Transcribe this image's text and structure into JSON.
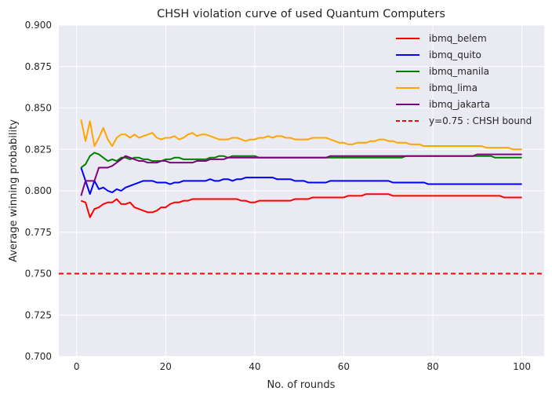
{
  "chart_data": {
    "type": "line",
    "title": "CHSH violation curve of used Quantum Computers",
    "xlabel": "No. of rounds",
    "ylabel": "Average winning probability",
    "xlim": [
      -4,
      105
    ],
    "ylim": [
      0.7,
      0.9
    ],
    "x_ticks": [
      0,
      20,
      40,
      60,
      80,
      100
    ],
    "x_tick_labels": [
      "0",
      "20",
      "40",
      "60",
      "80",
      "100"
    ],
    "y_ticks": [
      0.7,
      0.725,
      0.75,
      0.775,
      0.8,
      0.825,
      0.85,
      0.875,
      0.9
    ],
    "y_tick_labels": [
      "0.700",
      "0.725",
      "0.750",
      "0.775",
      "0.800",
      "0.825",
      "0.850",
      "0.875",
      "0.900"
    ],
    "grid": true,
    "legend_position": "top-right",
    "x_start": 1,
    "x_step": 1,
    "series": [
      {
        "name": "ibmq_belem",
        "color": "#ff0000",
        "values": [
          0.794,
          0.793,
          0.784,
          0.789,
          0.79,
          0.792,
          0.793,
          0.793,
          0.795,
          0.792,
          0.792,
          0.793,
          0.79,
          0.789,
          0.788,
          0.787,
          0.787,
          0.788,
          0.79,
          0.79,
          0.792,
          0.793,
          0.793,
          0.794,
          0.794,
          0.795,
          0.795,
          0.795,
          0.795,
          0.795,
          0.795,
          0.795,
          0.795,
          0.795,
          0.795,
          0.795,
          0.794,
          0.794,
          0.793,
          0.793,
          0.794,
          0.794,
          0.794,
          0.794,
          0.794,
          0.794,
          0.794,
          0.794,
          0.795,
          0.795,
          0.795,
          0.795,
          0.796,
          0.796,
          0.796,
          0.796,
          0.796,
          0.796,
          0.796,
          0.796,
          0.797,
          0.797,
          0.797,
          0.797,
          0.798,
          0.798,
          0.798,
          0.798,
          0.798,
          0.798,
          0.797,
          0.797,
          0.797,
          0.797,
          0.797,
          0.797,
          0.797,
          0.797,
          0.797,
          0.797,
          0.797,
          0.797,
          0.797,
          0.797,
          0.797,
          0.797,
          0.797,
          0.797,
          0.797,
          0.797,
          0.797,
          0.797,
          0.797,
          0.797,
          0.797,
          0.796,
          0.796,
          0.796,
          0.796,
          0.796
        ]
      },
      {
        "name": "ibmq_quito",
        "color": "#0000ff",
        "values": [
          0.814,
          0.806,
          0.798,
          0.806,
          0.801,
          0.802,
          0.8,
          0.799,
          0.801,
          0.8,
          0.802,
          0.803,
          0.804,
          0.805,
          0.806,
          0.806,
          0.806,
          0.805,
          0.805,
          0.805,
          0.804,
          0.805,
          0.805,
          0.806,
          0.806,
          0.806,
          0.806,
          0.806,
          0.806,
          0.807,
          0.806,
          0.806,
          0.807,
          0.807,
          0.806,
          0.807,
          0.807,
          0.808,
          0.808,
          0.808,
          0.808,
          0.808,
          0.808,
          0.808,
          0.807,
          0.807,
          0.807,
          0.807,
          0.806,
          0.806,
          0.806,
          0.805,
          0.805,
          0.805,
          0.805,
          0.805,
          0.806,
          0.806,
          0.806,
          0.806,
          0.806,
          0.806,
          0.806,
          0.806,
          0.806,
          0.806,
          0.806,
          0.806,
          0.806,
          0.806,
          0.805,
          0.805,
          0.805,
          0.805,
          0.805,
          0.805,
          0.805,
          0.805,
          0.804,
          0.804,
          0.804,
          0.804,
          0.804,
          0.804,
          0.804,
          0.804,
          0.804,
          0.804,
          0.804,
          0.804,
          0.804,
          0.804,
          0.804,
          0.804,
          0.804,
          0.804,
          0.804,
          0.804,
          0.804,
          0.804
        ]
      },
      {
        "name": "ibmq_manila",
        "color": "#008000",
        "values": [
          0.814,
          0.816,
          0.821,
          0.823,
          0.822,
          0.82,
          0.818,
          0.819,
          0.818,
          0.82,
          0.82,
          0.819,
          0.82,
          0.82,
          0.819,
          0.819,
          0.818,
          0.818,
          0.818,
          0.819,
          0.819,
          0.82,
          0.82,
          0.819,
          0.819,
          0.819,
          0.819,
          0.819,
          0.819,
          0.82,
          0.82,
          0.821,
          0.821,
          0.82,
          0.821,
          0.821,
          0.821,
          0.821,
          0.821,
          0.821,
          0.82,
          0.82,
          0.82,
          0.82,
          0.82,
          0.82,
          0.82,
          0.82,
          0.82,
          0.82,
          0.82,
          0.82,
          0.82,
          0.82,
          0.82,
          0.82,
          0.82,
          0.82,
          0.82,
          0.82,
          0.82,
          0.82,
          0.82,
          0.82,
          0.82,
          0.82,
          0.82,
          0.82,
          0.82,
          0.82,
          0.82,
          0.82,
          0.82,
          0.821,
          0.821,
          0.821,
          0.821,
          0.821,
          0.821,
          0.821,
          0.821,
          0.821,
          0.821,
          0.821,
          0.821,
          0.821,
          0.821,
          0.821,
          0.821,
          0.821,
          0.821,
          0.821,
          0.821,
          0.82,
          0.82,
          0.82,
          0.82,
          0.82,
          0.82,
          0.82
        ]
      },
      {
        "name": "ibmq_lima",
        "color": "#ffa500",
        "values": [
          0.843,
          0.83,
          0.842,
          0.827,
          0.832,
          0.838,
          0.831,
          0.827,
          0.832,
          0.834,
          0.834,
          0.832,
          0.834,
          0.832,
          0.833,
          0.834,
          0.835,
          0.832,
          0.831,
          0.832,
          0.832,
          0.833,
          0.831,
          0.832,
          0.834,
          0.835,
          0.833,
          0.834,
          0.834,
          0.833,
          0.832,
          0.831,
          0.831,
          0.831,
          0.832,
          0.832,
          0.831,
          0.83,
          0.831,
          0.831,
          0.832,
          0.832,
          0.833,
          0.832,
          0.833,
          0.833,
          0.832,
          0.832,
          0.831,
          0.831,
          0.831,
          0.831,
          0.832,
          0.832,
          0.832,
          0.832,
          0.831,
          0.83,
          0.829,
          0.829,
          0.828,
          0.828,
          0.829,
          0.829,
          0.829,
          0.83,
          0.83,
          0.831,
          0.831,
          0.83,
          0.83,
          0.829,
          0.829,
          0.829,
          0.828,
          0.828,
          0.828,
          0.827,
          0.827,
          0.827,
          0.827,
          0.827,
          0.827,
          0.827,
          0.827,
          0.827,
          0.827,
          0.827,
          0.827,
          0.827,
          0.827,
          0.826,
          0.826,
          0.826,
          0.826,
          0.826,
          0.826,
          0.825,
          0.825,
          0.825
        ]
      },
      {
        "name": "ibmq_jakarta",
        "color": "#800080",
        "values": [
          0.797,
          0.806,
          0.806,
          0.806,
          0.814,
          0.814,
          0.814,
          0.815,
          0.817,
          0.819,
          0.821,
          0.82,
          0.819,
          0.818,
          0.818,
          0.817,
          0.817,
          0.817,
          0.818,
          0.818,
          0.817,
          0.817,
          0.817,
          0.817,
          0.817,
          0.817,
          0.818,
          0.818,
          0.818,
          0.819,
          0.819,
          0.819,
          0.819,
          0.82,
          0.82,
          0.82,
          0.82,
          0.82,
          0.82,
          0.82,
          0.82,
          0.82,
          0.82,
          0.82,
          0.82,
          0.82,
          0.82,
          0.82,
          0.82,
          0.82,
          0.82,
          0.82,
          0.82,
          0.82,
          0.82,
          0.82,
          0.821,
          0.821,
          0.821,
          0.821,
          0.821,
          0.821,
          0.821,
          0.821,
          0.821,
          0.821,
          0.821,
          0.821,
          0.821,
          0.821,
          0.821,
          0.821,
          0.821,
          0.821,
          0.821,
          0.821,
          0.821,
          0.821,
          0.821,
          0.821,
          0.821,
          0.821,
          0.821,
          0.821,
          0.821,
          0.821,
          0.821,
          0.821,
          0.821,
          0.822,
          0.822,
          0.822,
          0.822,
          0.822,
          0.822,
          0.822,
          0.822,
          0.822,
          0.822,
          0.822
        ]
      }
    ],
    "reference_lines": [
      {
        "name": "y=0.75 : CHSH bound",
        "color": "#ff0000",
        "value": 0.75,
        "style": "dashed"
      }
    ]
  }
}
